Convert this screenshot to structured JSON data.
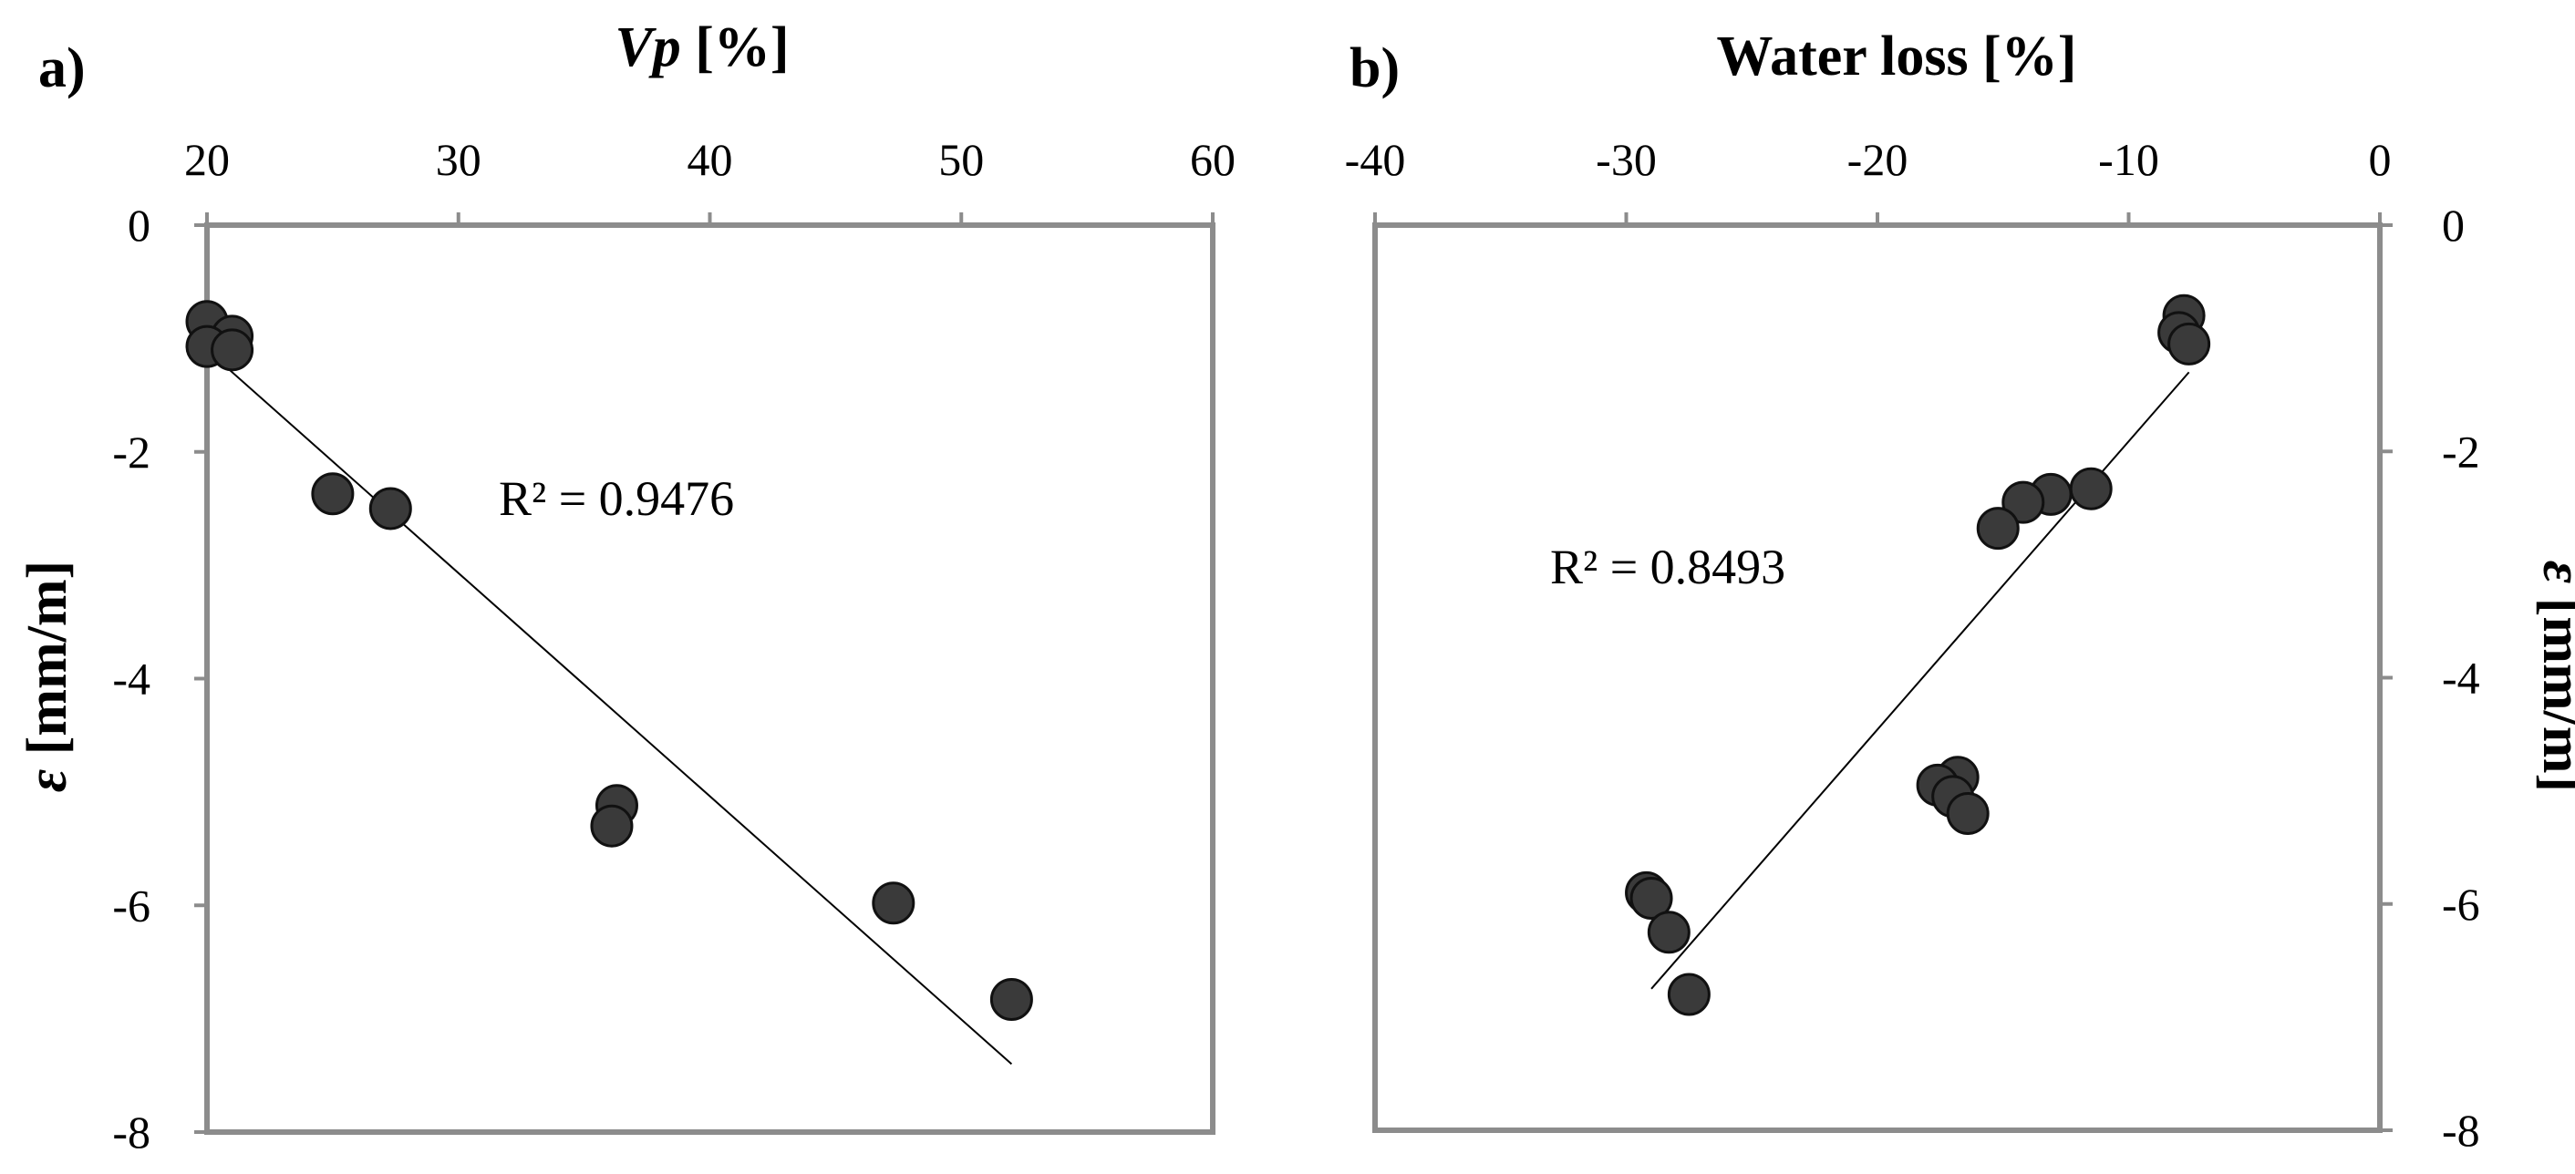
{
  "chart_data": [
    {
      "type": "scatter",
      "panel_label": "a)",
      "xlabel_italic": "Vp",
      "xlabel_rest": " [%]",
      "ylabel_italic": "ε",
      "ylabel_rest": " [mm/m]",
      "xlim": [
        20,
        60
      ],
      "ylim": [
        -8,
        0
      ],
      "xticks": [
        "20",
        "30",
        "40",
        "50",
        "60"
      ],
      "yticks": [
        "0",
        "-2",
        "-4",
        "-6",
        "-8"
      ],
      "x_axis_position": "top",
      "y_axis_position": "left",
      "grid": false,
      "r_squared_label": "R² = 0.9476",
      "points": [
        {
          "x": 20.0,
          "y": -0.85
        },
        {
          "x": 21.0,
          "y": -0.98
        },
        {
          "x": 20.0,
          "y": -1.07
        },
        {
          "x": 21.0,
          "y": -1.1
        },
        {
          "x": 25.0,
          "y": -2.37
        },
        {
          "x": 27.3,
          "y": -2.5
        },
        {
          "x": 36.3,
          "y": -5.12
        },
        {
          "x": 36.1,
          "y": -5.3
        },
        {
          "x": 47.3,
          "y": -5.98
        },
        {
          "x": 52.0,
          "y": -6.83
        }
      ],
      "trendline": {
        "x": [
          20.0,
          52.0
        ],
        "y": [
          -1.1,
          -7.4
        ]
      },
      "marker_color": "#3a3a3a",
      "line_color": "#000000"
    },
    {
      "type": "scatter",
      "panel_label": "b)",
      "xlabel": "Water loss [%]",
      "ylabel_italic": "ε",
      "ylabel_rest": " [mm/m]",
      "xlim": [
        -40,
        0
      ],
      "ylim": [
        -8,
        0
      ],
      "xticks": [
        "-40",
        "-30",
        "-20",
        "-10",
        "0"
      ],
      "yticks": [
        "0",
        "-2",
        "-4",
        "-6",
        "-8"
      ],
      "x_axis_position": "top",
      "y_axis_position": "right",
      "grid": false,
      "r_squared_label": "R² = 0.8493",
      "points": [
        {
          "x": -7.8,
          "y": -0.8
        },
        {
          "x": -8.0,
          "y": -0.95
        },
        {
          "x": -7.6,
          "y": -1.05
        },
        {
          "x": -11.5,
          "y": -2.33
        },
        {
          "x": -13.1,
          "y": -2.38
        },
        {
          "x": -14.2,
          "y": -2.45
        },
        {
          "x": -15.2,
          "y": -2.68
        },
        {
          "x": -16.8,
          "y": -4.88
        },
        {
          "x": -17.6,
          "y": -4.95
        },
        {
          "x": -17.0,
          "y": -5.05
        },
        {
          "x": -16.4,
          "y": -5.2
        },
        {
          "x": -29.2,
          "y": -5.9
        },
        {
          "x": -29.0,
          "y": -5.95
        },
        {
          "x": -28.3,
          "y": -6.25
        },
        {
          "x": -27.5,
          "y": -6.8
        }
      ],
      "trendline": {
        "x": [
          -29.0,
          -7.6
        ],
        "y": [
          -6.75,
          -1.3
        ]
      },
      "marker_color": "#3a3a3a",
      "line_color": "#000000"
    }
  ]
}
